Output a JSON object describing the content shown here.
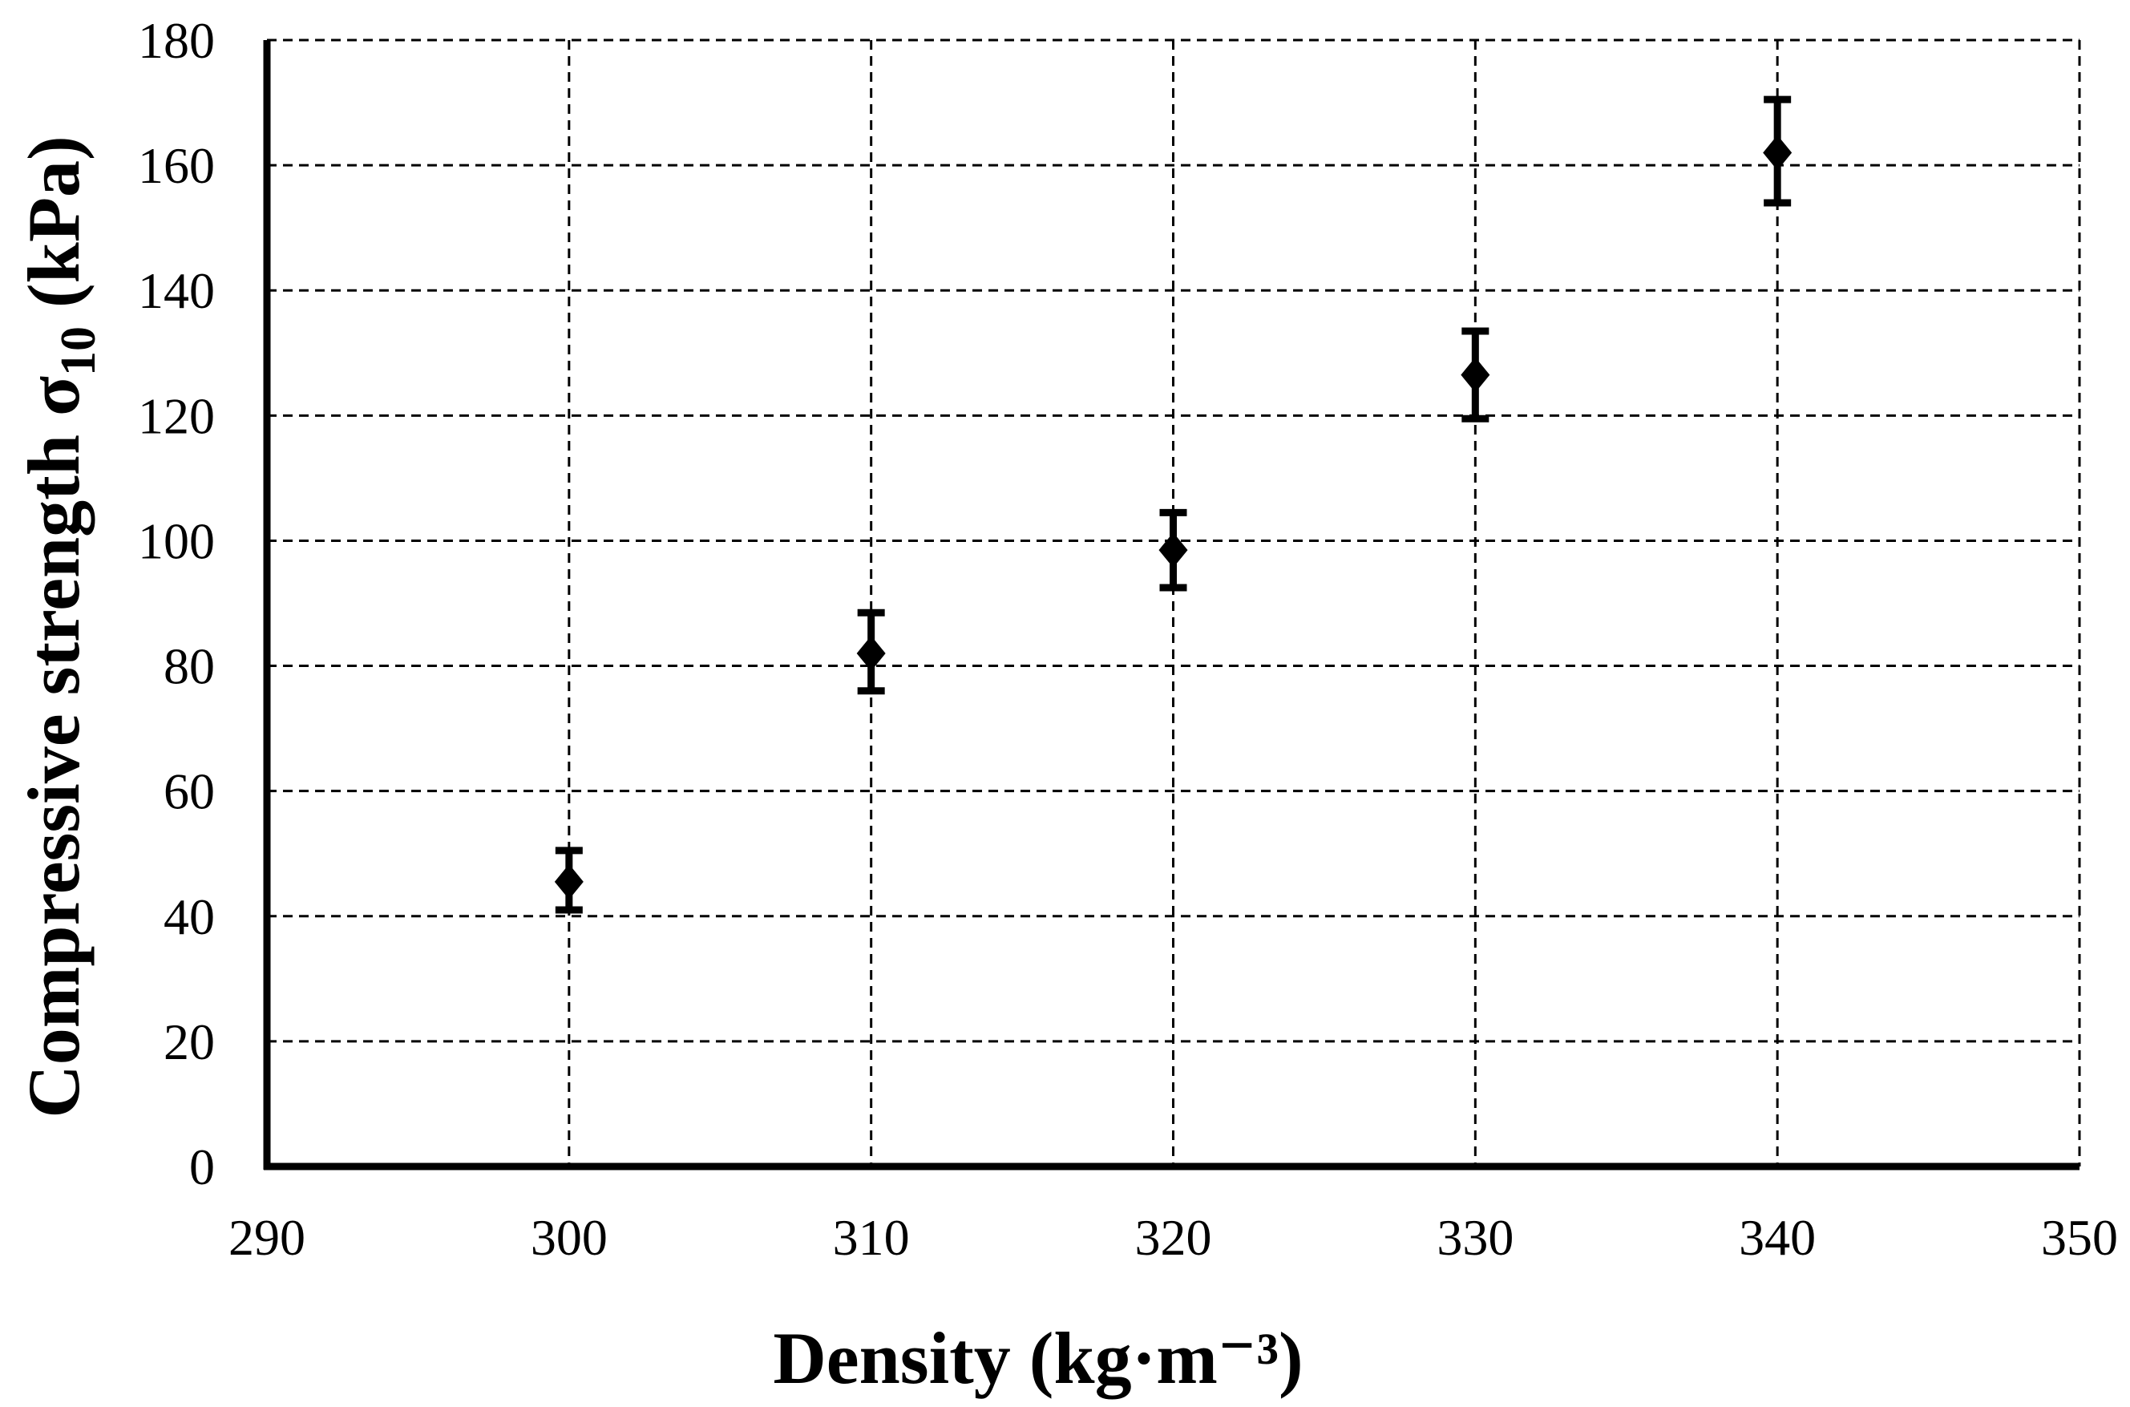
{
  "chart_data": {
    "type": "scatter",
    "title": "",
    "xlabel": "Density (kg·m⁻³)",
    "ylabel_main": "Compressive strength σ",
    "ylabel_sub": "10",
    "ylabel_unit": " (kPa)",
    "xlim": [
      290,
      350
    ],
    "ylim": [
      0,
      180
    ],
    "xticks": [
      "290",
      "300",
      "310",
      "320",
      "330",
      "340",
      "350"
    ],
    "yticks": [
      "0",
      "20",
      "40",
      "60",
      "80",
      "100",
      "120",
      "140",
      "160",
      "180"
    ],
    "grid": true,
    "series": [
      {
        "marker": "diamond",
        "color": "#000000",
        "points": [
          {
            "x": 300,
            "y": 45.5,
            "err_low": 41,
            "err_high": 50.5
          },
          {
            "x": 310,
            "y": 82,
            "err_low": 76,
            "err_high": 88.5
          },
          {
            "x": 320,
            "y": 98.5,
            "err_low": 92.5,
            "err_high": 104.5
          },
          {
            "x": 330,
            "y": 126.5,
            "err_low": 119.5,
            "err_high": 133.5
          },
          {
            "x": 340,
            "y": 162,
            "err_low": 154,
            "err_high": 170.5
          }
        ]
      }
    ]
  }
}
